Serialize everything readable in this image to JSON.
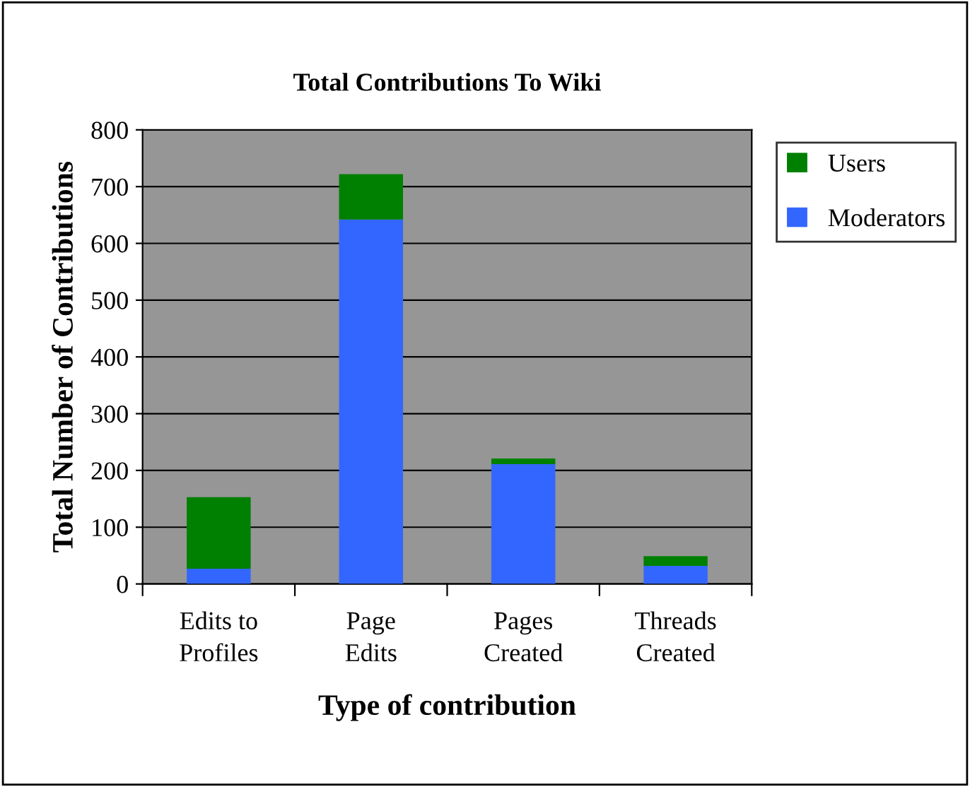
{
  "chart_data": {
    "type": "bar",
    "title": "Total Contributions To Wiki",
    "xlabel": "Type of contribution",
    "ylabel": "Total Number of Contributions",
    "categories": [
      "Edits to\nProfiles",
      "Page\nEdits",
      "Pages\nCreated",
      "Threads\nCreated"
    ],
    "series": [
      {
        "name": "Moderators",
        "color": "#3366ff",
        "values": [
          27,
          642,
          211,
          32
        ]
      },
      {
        "name": "Users",
        "color": "#008000",
        "values": [
          126,
          80,
          10,
          17
        ]
      }
    ],
    "stacked": true,
    "ylim": [
      0,
      800
    ],
    "yticks": [
      0,
      100,
      200,
      300,
      400,
      500,
      600,
      700,
      800
    ],
    "grid": "y",
    "legend": "top right"
  }
}
